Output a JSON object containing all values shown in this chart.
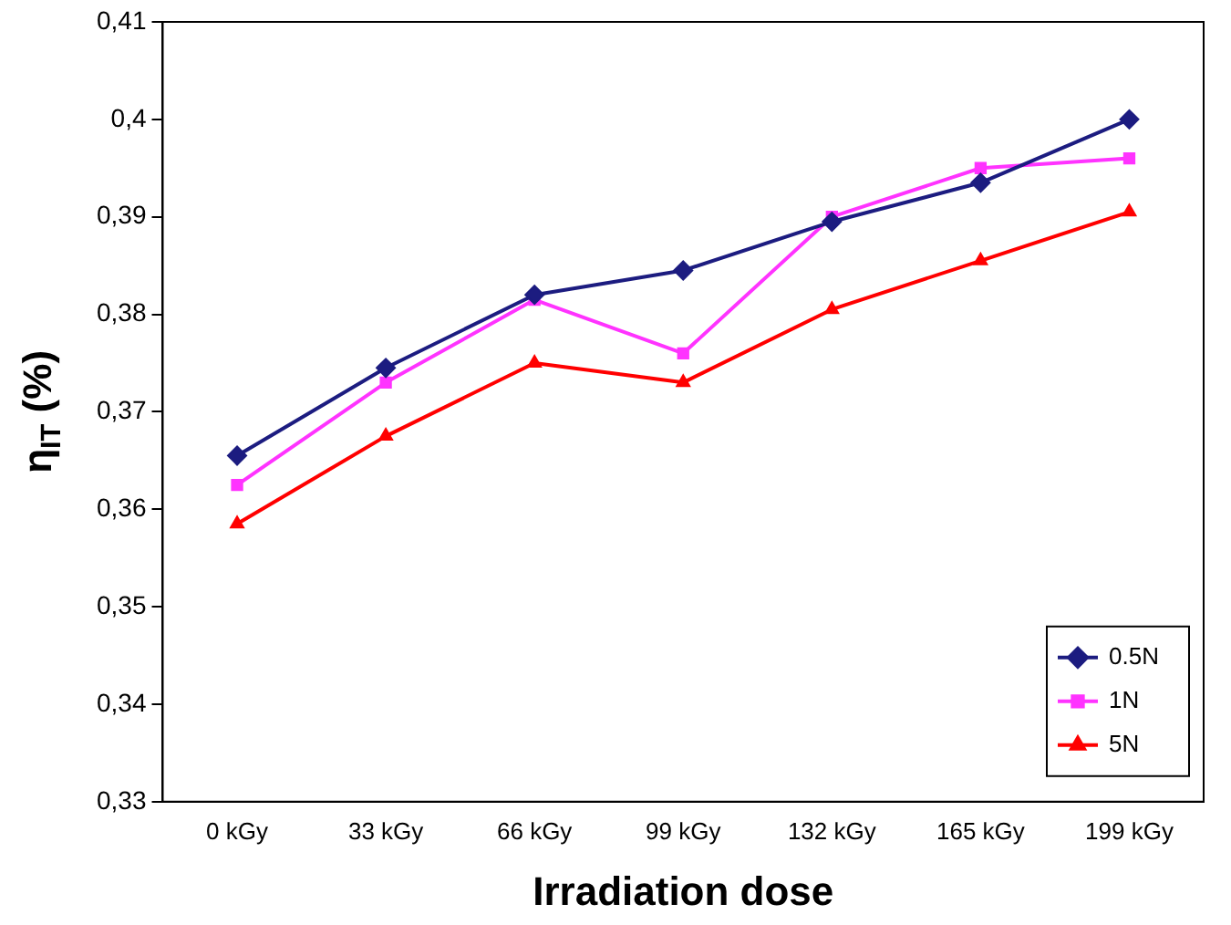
{
  "chart_data": {
    "type": "line",
    "xlabel": "Irradiation dose",
    "ylabel": "η$_{IT}$ (%)",
    "categories": [
      "0 kGy",
      "33 kGy",
      "66 kGy",
      "99 kGy",
      "132 kGy",
      "165 kGy",
      "199 kGy"
    ],
    "series": [
      {
        "name": "0.5N",
        "color": "#1c1c80",
        "marker": "diamond",
        "values": [
          0.3655,
          0.3745,
          0.382,
          0.3845,
          0.3895,
          0.3935,
          0.4
        ]
      },
      {
        "name": "1N",
        "color": "#ff33ff",
        "marker": "square",
        "values": [
          0.3625,
          0.373,
          0.3815,
          0.376,
          0.39,
          0.395,
          0.396
        ]
      },
      {
        "name": "5N",
        "color": "#ff0000",
        "marker": "triangle",
        "values": [
          0.3585,
          0.3675,
          0.375,
          0.373,
          0.3805,
          0.3855,
          0.3905
        ]
      }
    ],
    "ylim": [
      0.33,
      0.41
    ],
    "yticks": [
      {
        "value": 0.33,
        "label": "0,33"
      },
      {
        "value": 0.34,
        "label": "0,34"
      },
      {
        "value": 0.35,
        "label": "0,35"
      },
      {
        "value": 0.36,
        "label": "0,36"
      },
      {
        "value": 0.37,
        "label": "0,37"
      },
      {
        "value": 0.38,
        "label": "0,38"
      },
      {
        "value": 0.39,
        "label": "0,39"
      },
      {
        "value": 0.4,
        "label": "0,4"
      },
      {
        "value": 0.41,
        "label": "0,41"
      }
    ],
    "grid": false,
    "legend": "bottom right",
    "line_style": "solid"
  }
}
